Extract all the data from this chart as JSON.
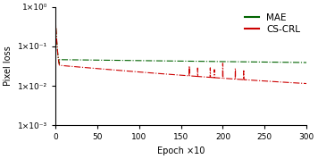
{
  "title": "",
  "xlabel": "Epoch ×10",
  "ylabel": "Pixel loss",
  "ylim_log": [
    -3,
    0
  ],
  "xlim": [
    0,
    300
  ],
  "xticks": [
    0,
    50,
    100,
    150,
    200,
    250,
    300
  ],
  "yticks_log": [
    -3,
    -2,
    -1,
    0
  ],
  "mae_color": "#006400",
  "cscrl_color": "#cc0000",
  "legend_line_style": "-",
  "plot_line_style": "-.",
  "linewidth": 0.8,
  "legend_labels": [
    "MAE",
    "CS-CRL"
  ],
  "figsize": [
    3.56,
    1.78
  ],
  "dpi": 100,
  "background": "#f0f0f0"
}
